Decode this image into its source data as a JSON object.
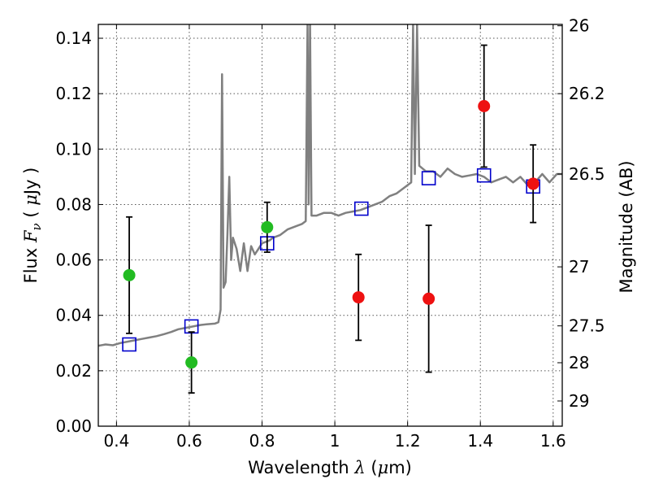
{
  "chart_data": {
    "type": "scatter",
    "xlabel": "Wavelength",
    "xlabel_symbol": "λ",
    "xlabel_unit_open": " (",
    "xlabel_unit_mu": "μ",
    "xlabel_unit_rest": "m)",
    "ylabel": "Flux",
    "ylabel_symbol": "F",
    "ylabel_symbol_sub": "ν",
    "ylabel_unit_open": "(",
    "ylabel_unit_mu": "μ",
    "ylabel_unit_rest": "Jy )",
    "y2label": "Magnitude (AB)",
    "xlim": [
      0.35,
      1.625
    ],
    "ylim": [
      0.0,
      0.145
    ],
    "grid": true,
    "x_ticks": [
      0.4,
      0.6,
      0.8,
      1.0,
      1.2,
      1.4,
      1.6
    ],
    "x_tick_labels": [
      "0.4",
      "0.6",
      "0.8",
      "1",
      "1.2",
      "1.4",
      "1.6"
    ],
    "y_ticks": [
      0.0,
      0.02,
      0.04,
      0.06,
      0.08,
      0.1,
      0.12,
      0.14
    ],
    "y_tick_labels": [
      "0.00",
      "0.02",
      "0.04",
      "0.06",
      "0.08",
      "0.10",
      "0.12",
      "0.14"
    ],
    "y2_ticks": [
      {
        "flux": 0.1445,
        "label": "26"
      },
      {
        "flux": 0.12,
        "label": "26.2"
      },
      {
        "flux": 0.091,
        "label": "26.5"
      },
      {
        "flux": 0.0575,
        "label": "27"
      },
      {
        "flux": 0.0362,
        "label": "27.5"
      },
      {
        "flux": 0.0229,
        "label": "28"
      },
      {
        "flux": 0.0091,
        "label": "29"
      }
    ],
    "series": [
      {
        "marker": "circle",
        "color": "#22bb22",
        "points": [
          {
            "x": 0.435,
            "y": 0.0545,
            "err": [
              0.0335,
              0.0755
            ]
          },
          {
            "x": 0.606,
            "y": 0.023,
            "err": [
              0.012,
              0.034
            ]
          },
          {
            "x": 0.814,
            "y": 0.0718,
            "err": [
              0.0628,
              0.0808
            ]
          }
        ]
      },
      {
        "marker": "circle",
        "color": "#ee1111",
        "points": [
          {
            "x": 1.065,
            "y": 0.0465,
            "err": [
              0.031,
              0.062
            ]
          },
          {
            "x": 1.258,
            "y": 0.046,
            "err": [
              0.0195,
              0.0725
            ]
          },
          {
            "x": 1.41,
            "y": 0.1155,
            "err": [
              0.0935,
              0.1375
            ]
          },
          {
            "x": 1.545,
            "y": 0.0875,
            "err": [
              0.0735,
              0.1015
            ]
          }
        ]
      },
      {
        "marker": "open-square",
        "color": "#0000cc",
        "points": [
          {
            "x": 0.435,
            "y": 0.0295
          },
          {
            "x": 0.606,
            "y": 0.036
          },
          {
            "x": 0.814,
            "y": 0.066
          },
          {
            "x": 1.073,
            "y": 0.0785
          },
          {
            "x": 1.258,
            "y": 0.0895
          },
          {
            "x": 1.41,
            "y": 0.0905
          },
          {
            "x": 1.545,
            "y": 0.0865
          }
        ]
      },
      {
        "marker": "line",
        "color": "#808080",
        "points": [
          [
            0.35,
            0.029
          ],
          [
            0.37,
            0.0295
          ],
          [
            0.39,
            0.0292
          ],
          [
            0.41,
            0.03
          ],
          [
            0.43,
            0.0305
          ],
          [
            0.45,
            0.031
          ],
          [
            0.47,
            0.0315
          ],
          [
            0.49,
            0.032
          ],
          [
            0.51,
            0.0325
          ],
          [
            0.53,
            0.0332
          ],
          [
            0.55,
            0.034
          ],
          [
            0.57,
            0.035
          ],
          [
            0.59,
            0.0355
          ],
          [
            0.61,
            0.036
          ],
          [
            0.63,
            0.0365
          ],
          [
            0.65,
            0.0368
          ],
          [
            0.67,
            0.037
          ],
          [
            0.68,
            0.0375
          ],
          [
            0.686,
            0.042
          ],
          [
            0.69,
            0.127
          ],
          [
            0.694,
            0.05
          ],
          [
            0.7,
            0.052
          ],
          [
            0.705,
            0.07
          ],
          [
            0.71,
            0.09
          ],
          [
            0.715,
            0.06
          ],
          [
            0.72,
            0.068
          ],
          [
            0.73,
            0.064
          ],
          [
            0.74,
            0.056
          ],
          [
            0.75,
            0.066
          ],
          [
            0.76,
            0.056
          ],
          [
            0.77,
            0.065
          ],
          [
            0.78,
            0.062
          ],
          [
            0.79,
            0.064
          ],
          [
            0.8,
            0.066
          ],
          [
            0.81,
            0.0665
          ],
          [
            0.82,
            0.067
          ],
          [
            0.83,
            0.068
          ],
          [
            0.85,
            0.069
          ],
          [
            0.87,
            0.071
          ],
          [
            0.89,
            0.072
          ],
          [
            0.91,
            0.073
          ],
          [
            0.92,
            0.074
          ],
          [
            0.925,
            0.145
          ],
          [
            0.928,
            0.08
          ],
          [
            0.932,
            0.145
          ],
          [
            0.936,
            0.076
          ],
          [
            0.95,
            0.076
          ],
          [
            0.97,
            0.077
          ],
          [
            0.99,
            0.077
          ],
          [
            1.01,
            0.076
          ],
          [
            1.03,
            0.077
          ],
          [
            1.05,
            0.0775
          ],
          [
            1.07,
            0.078
          ],
          [
            1.09,
            0.079
          ],
          [
            1.11,
            0.08
          ],
          [
            1.13,
            0.081
          ],
          [
            1.15,
            0.083
          ],
          [
            1.17,
            0.084
          ],
          [
            1.19,
            0.086
          ],
          [
            1.2,
            0.087
          ],
          [
            1.21,
            0.088
          ],
          [
            1.215,
            0.145
          ],
          [
            1.22,
            0.091
          ],
          [
            1.226,
            0.145
          ],
          [
            1.232,
            0.094
          ],
          [
            1.25,
            0.092
          ],
          [
            1.27,
            0.092
          ],
          [
            1.29,
            0.09
          ],
          [
            1.31,
            0.093
          ],
          [
            1.33,
            0.091
          ],
          [
            1.35,
            0.09
          ],
          [
            1.37,
            0.0905
          ],
          [
            1.39,
            0.091
          ],
          [
            1.41,
            0.09
          ],
          [
            1.43,
            0.088
          ],
          [
            1.45,
            0.089
          ],
          [
            1.47,
            0.09
          ],
          [
            1.49,
            0.088
          ],
          [
            1.51,
            0.09
          ],
          [
            1.53,
            0.087
          ],
          [
            1.55,
            0.088
          ],
          [
            1.57,
            0.091
          ],
          [
            1.59,
            0.088
          ],
          [
            1.61,
            0.091
          ],
          [
            1.625,
            0.091
          ]
        ]
      }
    ]
  }
}
